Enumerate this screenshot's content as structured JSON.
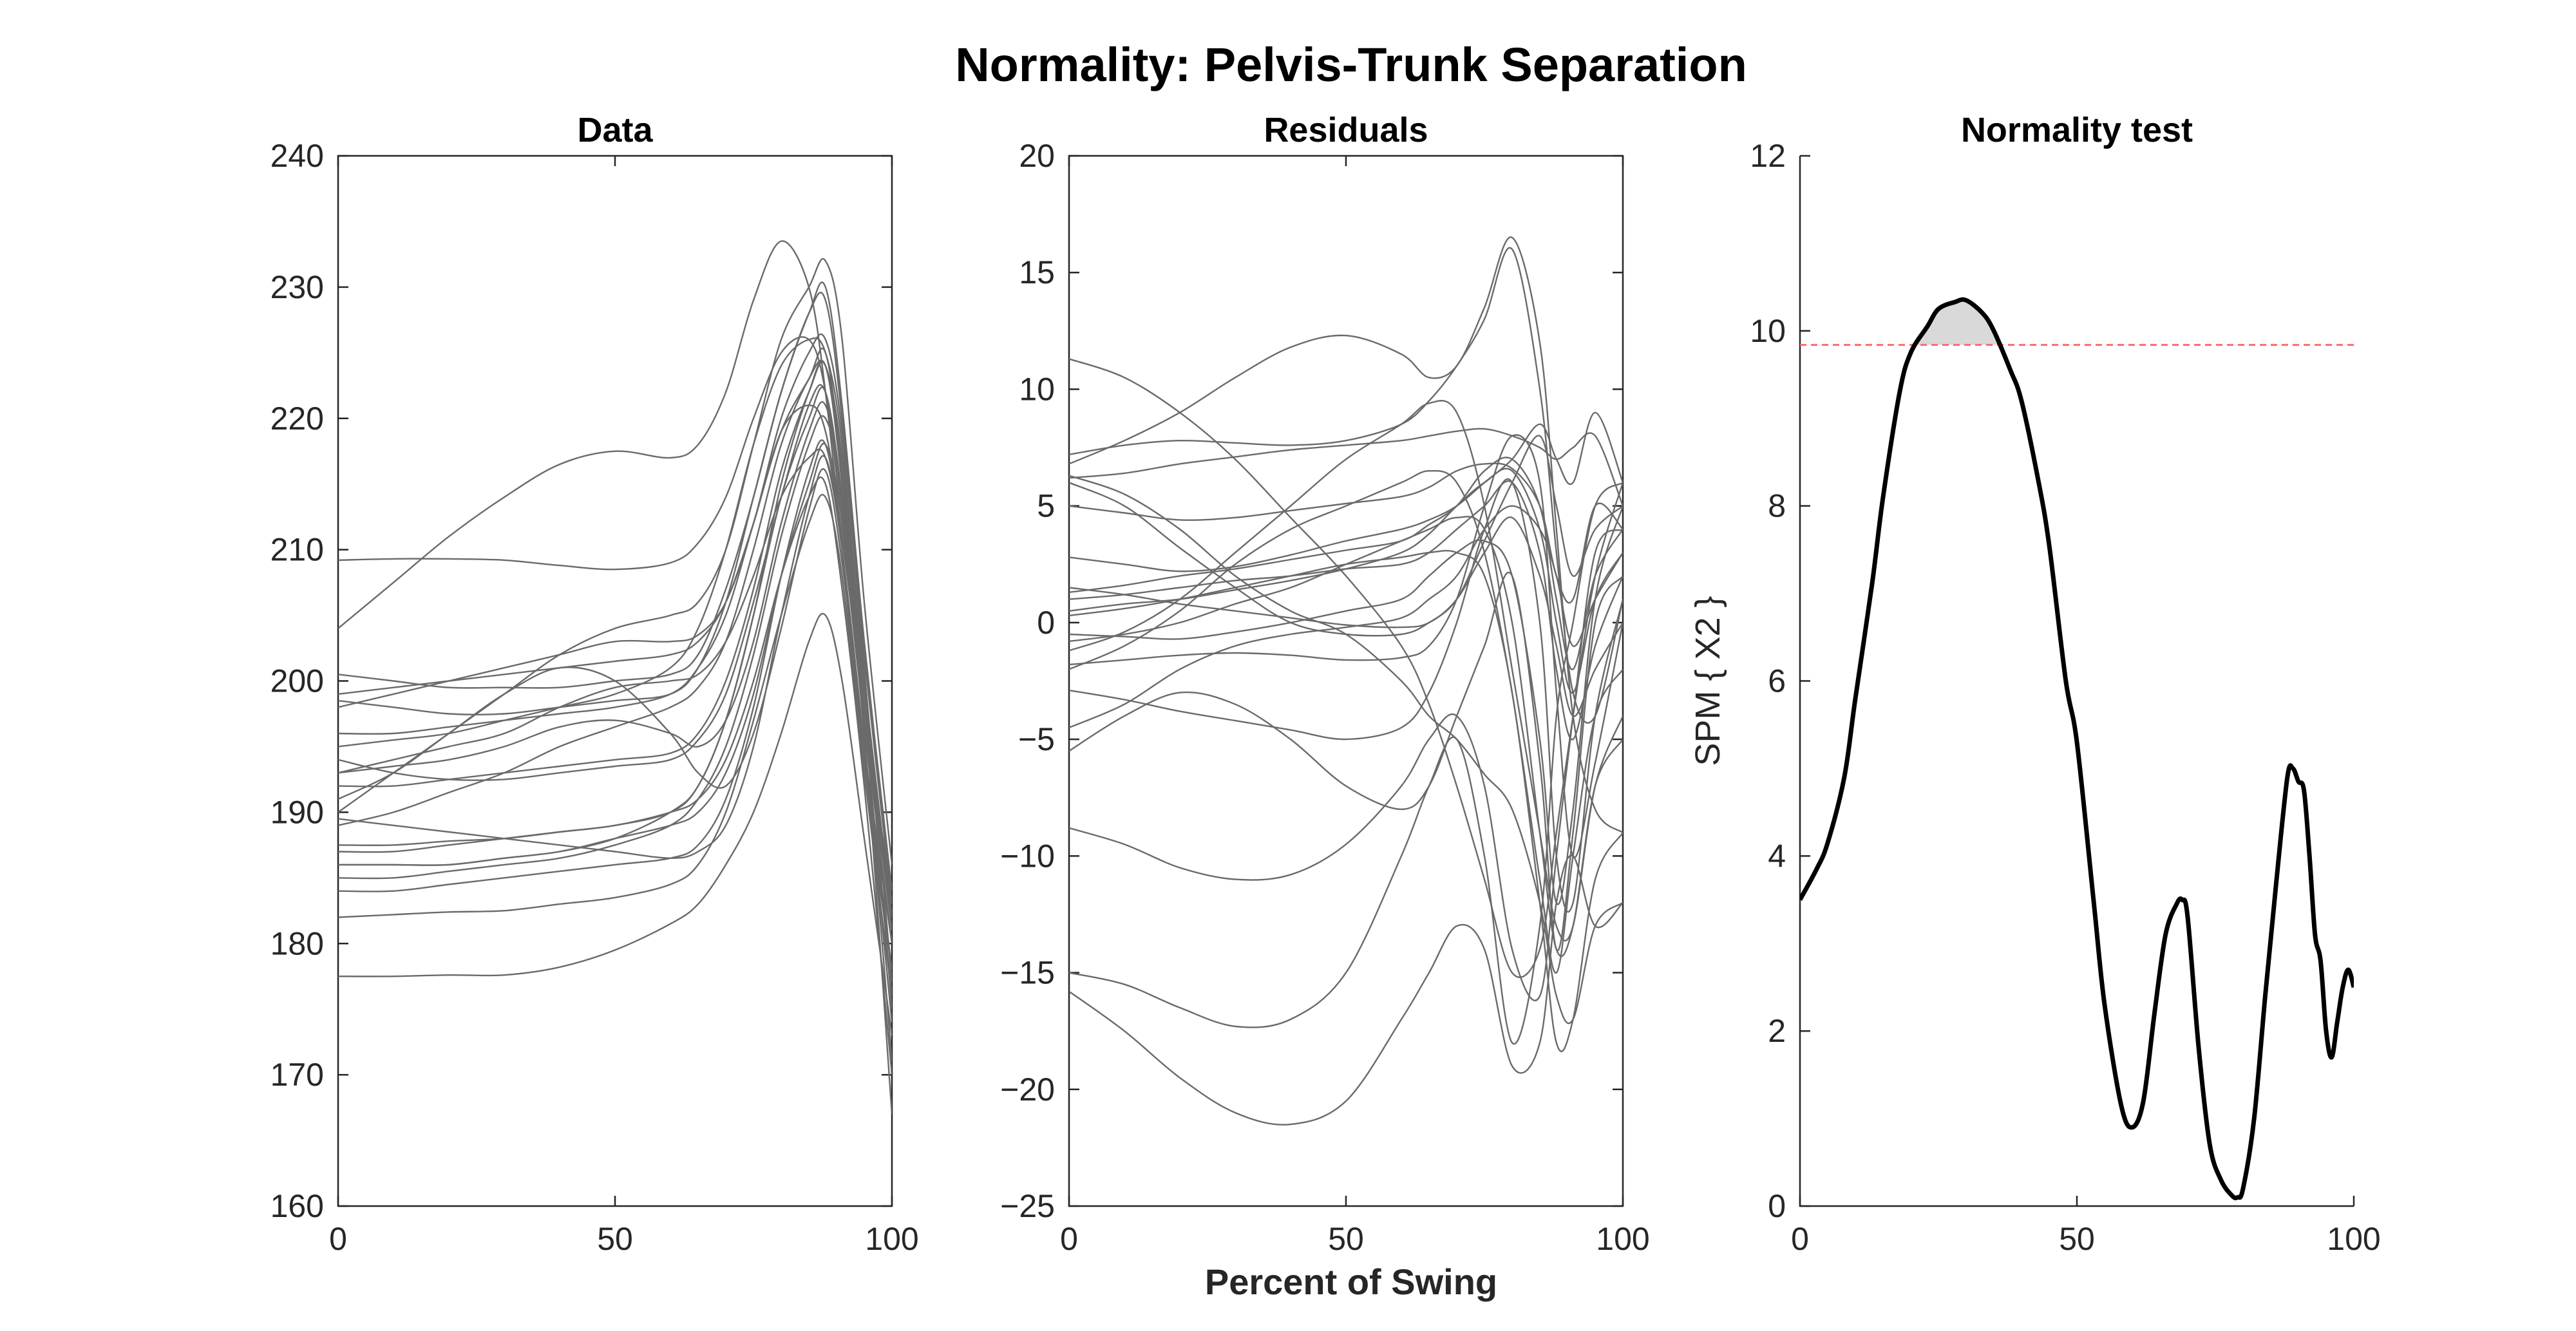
{
  "figure": {
    "suptitle": "Normality: Pelvis-Trunk Separation",
    "shared_xlabel": "Percent of Swing"
  },
  "chart_data": [
    {
      "type": "line",
      "title": "Data",
      "xlabel": "",
      "ylabel": "",
      "xlim": [
        0,
        100
      ],
      "ylim": [
        160,
        240
      ],
      "xticks": [
        0,
        50,
        100
      ],
      "yticks": [
        160,
        170,
        180,
        190,
        200,
        210,
        220,
        230,
        240
      ],
      "grid": false,
      "line_color": "#6a6a6a",
      "x": [
        0,
        10,
        20,
        30,
        40,
        50,
        60,
        65,
        70,
        75,
        80,
        85,
        88,
        91,
        95,
        100
      ],
      "series": [
        {
          "values": [
            177.5,
            177.5,
            177.6,
            177.6,
            178.2,
            179.5,
            181.5,
            183,
            186,
            190,
            196,
            203,
            205,
            200,
            188,
            173
          ]
        },
        {
          "values": [
            182,
            182.2,
            182.4,
            182.5,
            183,
            183.5,
            184.5,
            186,
            190,
            197,
            205,
            212,
            214,
            208,
            193,
            176
          ]
        },
        {
          "values": [
            184,
            184,
            184.5,
            185,
            185.5,
            186,
            186.5,
            187.5,
            191,
            198,
            208,
            216,
            218,
            210,
            194,
            178
          ]
        },
        {
          "values": [
            186,
            186,
            186,
            186.5,
            187,
            188,
            190,
            192,
            197,
            205,
            214,
            220,
            222,
            213,
            197,
            180
          ]
        },
        {
          "values": [
            187.5,
            187.5,
            187.8,
            188,
            188.5,
            189,
            190,
            192,
            197,
            205,
            215,
            222,
            224,
            215,
            199,
            181
          ]
        },
        {
          "values": [
            189.5,
            189,
            188.5,
            188,
            187.5,
            187,
            186.5,
            187,
            189,
            195,
            205,
            214,
            217,
            210,
            195,
            180
          ]
        },
        {
          "values": [
            192,
            192,
            192.5,
            193,
            193.5,
            194,
            194.5,
            196,
            200,
            207,
            216,
            222,
            224,
            216,
            200,
            182
          ]
        },
        {
          "values": [
            194,
            193,
            192.5,
            192.5,
            193,
            193.5,
            194,
            195.5,
            199,
            206,
            214,
            221,
            222,
            214,
            198,
            183
          ]
        },
        {
          "values": [
            196,
            196,
            196.5,
            197,
            197.5,
            198,
            199,
            201,
            205,
            212,
            219,
            223,
            225,
            216,
            200,
            182
          ]
        },
        {
          "values": [
            198.5,
            198,
            197.5,
            197.5,
            198,
            198.5,
            199,
            201,
            206,
            214,
            222,
            228,
            229,
            220,
            202,
            183
          ]
        },
        {
          "values": [
            200.5,
            200,
            199.5,
            199.5,
            199.5,
            200,
            200.5,
            202,
            207,
            214,
            222,
            228,
            230,
            221,
            203,
            184
          ]
        },
        {
          "values": [
            209.2,
            209.3,
            209.3,
            209.2,
            208.8,
            208.5,
            209,
            210.5,
            214,
            220,
            225,
            226,
            222,
            212,
            197,
            184
          ]
        },
        {
          "values": [
            204,
            207.5,
            211,
            214,
            216.5,
            217.5,
            217,
            218,
            222,
            229,
            233.5,
            230,
            222,
            210,
            193,
            178
          ]
        },
        {
          "values": [
            190,
            193,
            196,
            199,
            202,
            204,
            205,
            206,
            210,
            218,
            226,
            230,
            232,
            226,
            206,
            186
          ]
        },
        {
          "values": [
            195,
            195.5,
            196,
            197,
            198,
            199,
            201,
            204,
            210,
            218,
            224,
            226,
            225,
            218,
            200,
            181
          ]
        },
        {
          "values": [
            193,
            193.5,
            194,
            195,
            196.5,
            197,
            196,
            195,
            197,
            203,
            212,
            219,
            221,
            214,
            198,
            181
          ]
        },
        {
          "values": [
            191,
            193,
            196,
            199,
            201,
            200,
            196,
            193,
            192,
            196,
            204,
            213,
            216,
            209,
            195,
            178
          ]
        },
        {
          "values": [
            189,
            190,
            191.5,
            193,
            195,
            196.5,
            198,
            199.5,
            203,
            210,
            218,
            223,
            224,
            217,
            200,
            175
          ]
        },
        {
          "values": [
            198,
            199,
            200,
            201,
            202,
            203,
            203,
            203.5,
            206,
            212,
            220,
            225,
            226,
            219,
            201,
            177
          ]
        },
        {
          "values": [
            187,
            187,
            187.5,
            188,
            188.5,
            189,
            190,
            191,
            194,
            200,
            208,
            214,
            215,
            207,
            192,
            170
          ]
        },
        {
          "values": [
            199,
            199.5,
            200,
            200.5,
            201,
            201.5,
            202,
            203,
            206,
            212,
            219,
            221,
            219,
            211,
            196,
            167
          ]
        },
        {
          "values": [
            186,
            186,
            186,
            186.5,
            187,
            188,
            189,
            190,
            193,
            199,
            208,
            215,
            218,
            212,
            196,
            171
          ]
        },
        {
          "values": [
            193,
            194,
            195,
            196,
            198,
            199.5,
            200,
            200.5,
            203,
            208,
            214,
            217,
            217,
            210,
            195,
            174
          ]
        },
        {
          "values": [
            185,
            185,
            185.5,
            186,
            186.5,
            187.5,
            189,
            191,
            195,
            202,
            211,
            218,
            220,
            214,
            197,
            176
          ]
        }
      ]
    },
    {
      "type": "line",
      "title": "Residuals",
      "xlabel": "Percent of Swing",
      "ylabel": "",
      "xlim": [
        0,
        100
      ],
      "ylim": [
        -25,
        20
      ],
      "xticks": [
        0,
        50,
        100
      ],
      "yticks": [
        -25,
        -20,
        -15,
        -10,
        -5,
        0,
        5,
        10,
        15,
        20
      ],
      "grid": false,
      "line_color": "#6a6a6a",
      "x": [
        0,
        10,
        20,
        30,
        40,
        50,
        60,
        65,
        70,
        75,
        80,
        85,
        88,
        91,
        95,
        100
      ],
      "series": [
        {
          "values": [
            -15.8,
            -17.5,
            -19.5,
            -21,
            -21.5,
            -20.5,
            -17,
            -15,
            -13,
            -14,
            -19,
            -18,
            -12,
            -10,
            -13,
            -12
          ]
        },
        {
          "values": [
            -15,
            -15.5,
            -16.5,
            -17.3,
            -17,
            -15,
            -10,
            -7,
            -5,
            -10,
            -18,
            -13,
            -4,
            0,
            5,
            6
          ]
        },
        {
          "values": [
            -8.8,
            -9.5,
            -10.5,
            -11,
            -10.8,
            -9.5,
            -7,
            -5,
            -4,
            -7,
            -14,
            -16,
            -10,
            -4,
            3,
            4
          ]
        },
        {
          "values": [
            -5.5,
            -4,
            -3,
            -3.5,
            -5,
            -7,
            -8,
            -7,
            -4,
            -1,
            2,
            -6,
            -14,
            -9,
            0,
            2
          ]
        },
        {
          "values": [
            -2.9,
            -3.3,
            -3.8,
            -4.2,
            -4.6,
            -5,
            -4.5,
            -3,
            0,
            4,
            6,
            0,
            -10,
            -12,
            -4,
            1
          ]
        },
        {
          "values": [
            -1.8,
            -1.6,
            -1.4,
            -1.3,
            -1.4,
            -1.6,
            -1.5,
            -1,
            1,
            5,
            8,
            6,
            -3,
            -10,
            -6,
            0
          ]
        },
        {
          "values": [
            -0.5,
            -0.6,
            -0.7,
            -0.4,
            0,
            0.5,
            1,
            2,
            3,
            3.5,
            2,
            -5,
            -12,
            -8,
            1,
            5
          ]
        },
        {
          "values": [
            0.5,
            0.8,
            1,
            1.4,
            1.8,
            2.3,
            3,
            3.8,
            5,
            6,
            6.5,
            4,
            0,
            -3,
            1,
            3
          ]
        },
        {
          "values": [
            1,
            1.2,
            1.5,
            1.8,
            2,
            2.3,
            2.5,
            3,
            4,
            5,
            6,
            3,
            -2,
            -5,
            -1,
            2
          ]
        },
        {
          "values": [
            1.3,
            1.6,
            2,
            2.3,
            2.7,
            3.1,
            3.5,
            4.2,
            5,
            6.5,
            7,
            5,
            1,
            -2,
            2,
            4
          ]
        },
        {
          "values": [
            2.8,
            2.5,
            2.2,
            2.4,
            2.9,
            3.5,
            4,
            4.4,
            5,
            6,
            7,
            8.5,
            7,
            6,
            9,
            6
          ]
        },
        {
          "values": [
            5,
            4.7,
            4.4,
            4.5,
            4.8,
            5.1,
            5.4,
            5.8,
            6.5,
            6.8,
            6.6,
            5,
            2,
            1,
            5,
            4
          ]
        },
        {
          "values": [
            6.2,
            6.4,
            6.8,
            7.1,
            7.4,
            7.6,
            7.8,
            8,
            8.2,
            8.3,
            8,
            7.5,
            7,
            7.5,
            8,
            5
          ]
        },
        {
          "values": [
            7.2,
            7.6,
            7.8,
            7.7,
            7.6,
            7.8,
            8.5,
            9.5,
            11,
            13,
            16,
            10,
            3,
            -3,
            -4,
            1
          ]
        },
        {
          "values": [
            6.8,
            7.8,
            9,
            10.5,
            11.8,
            12.3,
            11.5,
            10.5,
            11,
            13.5,
            16.5,
            12,
            4,
            -4,
            -8,
            -9
          ]
        },
        {
          "values": [
            11.3,
            10.5,
            9,
            7,
            4.5,
            2,
            -1,
            -3.5,
            -7,
            -11,
            -15,
            -14,
            -9,
            -4,
            2,
            6
          ]
        },
        {
          "values": [
            6,
            5,
            3.2,
            1.5,
            0,
            -0.5,
            -0.5,
            0,
            1,
            3.5,
            6,
            8,
            5,
            2,
            4,
            5
          ]
        },
        {
          "values": [
            6.3,
            5.5,
            4,
            2,
            0.5,
            -0.5,
            -2.5,
            -4,
            -5,
            -6.5,
            -8,
            -12,
            -16,
            -17,
            -13,
            -12
          ]
        },
        {
          "values": [
            -2,
            -1,
            0.5,
            2.5,
            4,
            5,
            6,
            6.5,
            6,
            3,
            -3,
            -11,
            -15,
            -10,
            -4,
            -2
          ]
        },
        {
          "values": [
            -0.8,
            -0.5,
            0,
            0.8,
            1.5,
            2.5,
            3.5,
            4,
            4.5,
            4,
            0,
            -9,
            -14,
            -13,
            -7,
            -5
          ]
        },
        {
          "values": [
            0.3,
            0.6,
            1,
            1.5,
            2,
            2.5,
            2.8,
            3,
            3,
            2,
            -3,
            -12,
            -18,
            -17,
            -11,
            -9
          ]
        },
        {
          "values": [
            -1.2,
            -0.4,
            1,
            3,
            5,
            7,
            8.5,
            9.4,
            9,
            5,
            -2,
            -9,
            -13,
            -13,
            -7,
            -4
          ]
        },
        {
          "values": [
            1.5,
            1.2,
            0.8,
            0.5,
            0.2,
            -0.1,
            -0.2,
            0,
            1,
            3,
            4.5,
            2,
            -1,
            -4,
            -2,
            0
          ]
        },
        {
          "values": [
            -4.5,
            -3.5,
            -2,
            -1,
            -0.5,
            -0.2,
            0.2,
            1,
            2,
            4,
            5,
            4,
            2,
            -1,
            1,
            3
          ]
        }
      ]
    },
    {
      "type": "line",
      "title": "Normality test",
      "xlabel": "",
      "ylabel": "SPM { X2 }",
      "xlim": [
        0,
        100
      ],
      "ylim": [
        0,
        12
      ],
      "xticks": [
        0,
        50,
        100
      ],
      "yticks": [
        0,
        2,
        4,
        6,
        8,
        10,
        12
      ],
      "grid": false,
      "line_color": "#000000",
      "threshold": 9.84,
      "threshold_color": "#ff6b6b",
      "suprathreshold_fill": "#d9d9d9",
      "x": [
        0,
        3,
        5,
        8,
        10,
        13,
        15,
        18,
        20,
        23,
        25,
        28,
        30,
        33,
        35,
        38,
        40,
        43,
        45,
        48,
        50,
        53,
        55,
        58,
        60,
        62,
        64,
        66,
        68,
        69,
        70,
        72,
        74,
        76,
        78,
        79,
        80,
        82,
        84,
        86,
        88,
        89,
        90,
        91,
        92,
        93,
        94,
        95,
        96,
        97,
        98,
        99,
        100
      ],
      "values": [
        3.5,
        3.85,
        4.15,
        4.9,
        5.8,
        7.1,
        8.1,
        9.3,
        9.75,
        10.05,
        10.25,
        10.33,
        10.35,
        10.2,
        10.0,
        9.55,
        9.2,
        8.3,
        7.55,
        6.0,
        5.3,
        3.5,
        2.3,
        1.15,
        0.9,
        1.2,
        2.2,
        3.1,
        3.45,
        3.5,
        3.3,
        1.8,
        0.7,
        0.3,
        0.12,
        0.1,
        0.2,
        1.0,
        2.4,
        3.7,
        4.9,
        5.0,
        4.85,
        4.75,
        4.0,
        3.1,
        2.8,
        2.0,
        1.7,
        2.1,
        2.5,
        2.7,
        2.5
      ]
    }
  ]
}
